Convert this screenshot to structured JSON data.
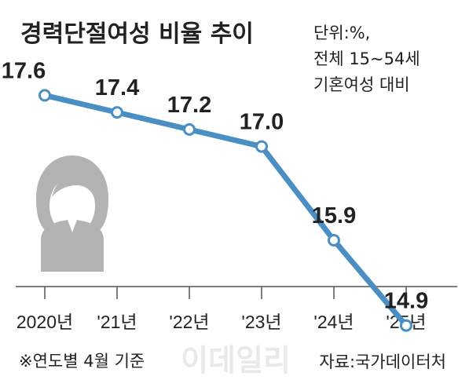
{
  "chart_data": {
    "type": "line",
    "title": "경력단절여성 비율 추이",
    "unit_note": [
      "단위:%,",
      "전체 15~54세",
      "기혼여성 대비"
    ],
    "categories": [
      "2020년",
      "'21년",
      "'22년",
      "'23년",
      "'24년",
      "'25년"
    ],
    "values": [
      17.6,
      17.4,
      17.2,
      17.0,
      15.9,
      14.9
    ],
    "value_labels": [
      "17.6",
      "17.4",
      "17.2",
      "17.0",
      "15.9",
      "14.9"
    ],
    "xlabel": "",
    "ylabel": "",
    "ylim": [
      14.5,
      18.0
    ],
    "grid": false,
    "legend": "none"
  },
  "footnote": "※연도별 4월 기준",
  "source": "자료:국가데이터처",
  "watermark": "이데일리",
  "colors": {
    "line": "#4a8fc4",
    "marker_fill": "#ffffff",
    "axis": "#555555",
    "text": "#222222",
    "icon": "#b3b3b3",
    "watermark": "#e9e9e9"
  },
  "icons": [
    "woman-silhouette-icon"
  ]
}
